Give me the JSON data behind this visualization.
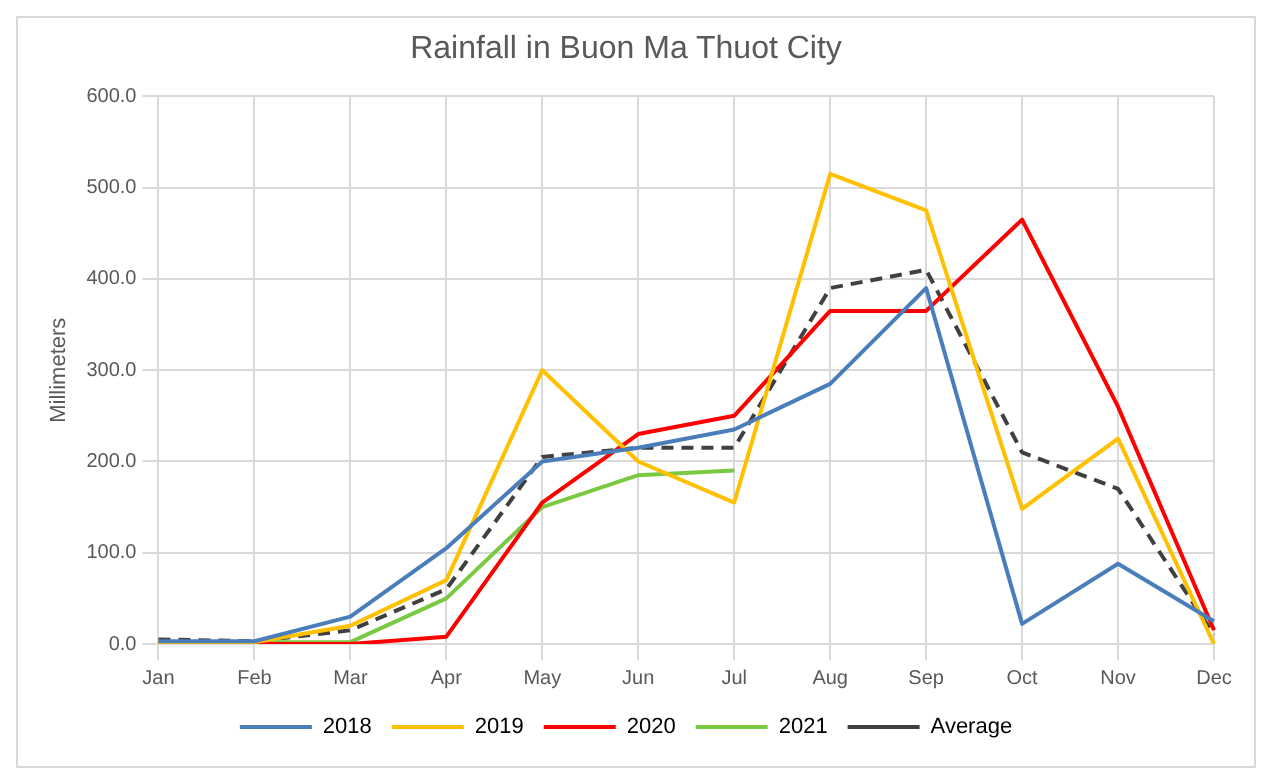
{
  "chart_data": {
    "type": "line",
    "title": "Rainfall in Buon Ma Thuot City",
    "ylabel": "Millimeters",
    "categories": [
      "Jan",
      "Feb",
      "Mar",
      "Apr",
      "May",
      "Jun",
      "Jul",
      "Aug",
      "Sep",
      "Oct",
      "Nov",
      "Dec"
    ],
    "series": [
      {
        "name": "2018",
        "color": "#4a7ebb",
        "values": [
          3,
          3,
          30,
          105,
          200,
          215,
          235,
          285,
          390,
          22,
          88,
          25
        ]
      },
      {
        "name": "2019",
        "color": "#ffc000",
        "values": [
          2,
          2,
          20,
          70,
          300,
          200,
          155,
          515,
          475,
          148,
          225,
          0
        ]
      },
      {
        "name": "2020",
        "color": "#ff0000",
        "values": [
          0,
          0,
          0,
          8,
          155,
          230,
          250,
          365,
          365,
          465,
          260,
          15
        ]
      },
      {
        "name": "2021",
        "color": "#7ac943",
        "values": [
          2,
          2,
          2,
          50,
          150,
          185,
          190,
          null,
          null,
          null,
          null,
          null
        ]
      },
      {
        "name": "Average",
        "color": "#404040",
        "line_style": "dashed",
        "values": [
          5,
          3,
          15,
          60,
          205,
          215,
          215,
          390,
          410,
          210,
          170,
          10
        ]
      }
    ],
    "ylim": [
      0,
      600
    ],
    "yticks": [
      {
        "value": 0,
        "label": "0.0"
      },
      {
        "value": 100,
        "label": "100.0"
      },
      {
        "value": 200,
        "label": "200.0"
      },
      {
        "value": 300,
        "label": "300.0"
      },
      {
        "value": 400,
        "label": "400.0"
      },
      {
        "value": 500,
        "label": "500.0"
      },
      {
        "value": 600,
        "label": "600.0"
      }
    ],
    "grid": true,
    "legend": "bottom",
    "marker": "none"
  }
}
